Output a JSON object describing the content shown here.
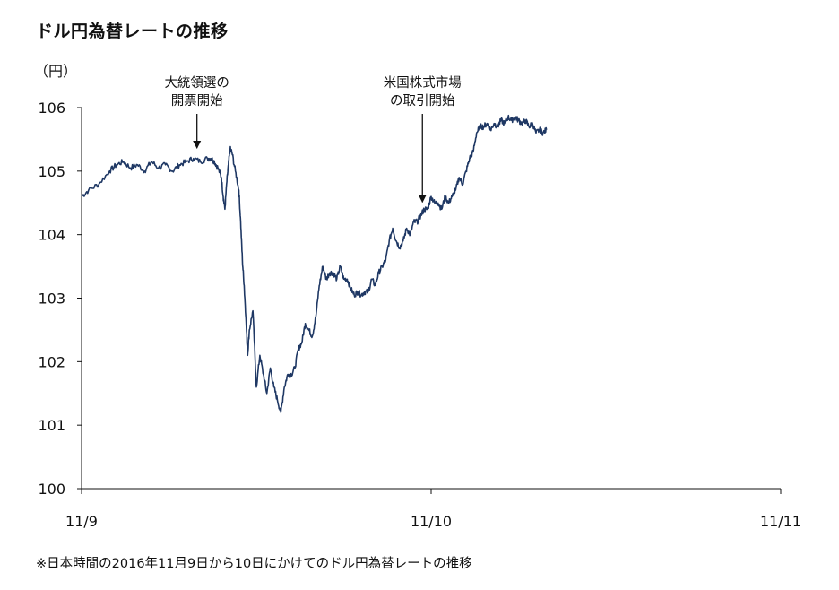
{
  "title": "ドル円為替レートの推移",
  "footnote": "※日本時間の2016年11月9日から10日にかけてのドル円為替レートの推移",
  "colors": {
    "line": "#1f3864",
    "axis": "#111111"
  },
  "chart_data": {
    "type": "line",
    "ylabel": "（円）",
    "ylim": [
      100,
      106
    ],
    "yticks": [
      100,
      101,
      102,
      103,
      104,
      105,
      106
    ],
    "xticks": [
      "11/9",
      "11/10",
      "11/11"
    ],
    "xlim_days": [
      0,
      2
    ],
    "annotations": [
      {
        "lines": [
          "大統領選の",
          "開票開始"
        ],
        "at_x": 0.33,
        "at_y": 105.25
      },
      {
        "lines": [
          "米国株式市場",
          "の取引開始"
        ],
        "at_x": 0.975,
        "at_y": 104.4
      }
    ],
    "series": [
      {
        "x": [
          0,
          0.02,
          0.05,
          0.08,
          0.1,
          0.12,
          0.14,
          0.16,
          0.18,
          0.2,
          0.22,
          0.24,
          0.26,
          0.28,
          0.3,
          0.32,
          0.34,
          0.36,
          0.37,
          0.38,
          0.39,
          0.4,
          0.405,
          0.41,
          0.415,
          0.42,
          0.425,
          0.43,
          0.44,
          0.45,
          0.455,
          0.46,
          0.465,
          0.47,
          0.475,
          0.48,
          0.49,
          0.5,
          0.51,
          0.52,
          0.53,
          0.54,
          0.55,
          0.56,
          0.57,
          0.58,
          0.59,
          0.6,
          0.61,
          0.62,
          0.63,
          0.64,
          0.65,
          0.66,
          0.67,
          0.68,
          0.69,
          0.7,
          0.71,
          0.72,
          0.73,
          0.74,
          0.75,
          0.76,
          0.77,
          0.78,
          0.79,
          0.8,
          0.81,
          0.82,
          0.83,
          0.84,
          0.85,
          0.86,
          0.87,
          0.88,
          0.89,
          0.9,
          0.91,
          0.92,
          0.93,
          0.94,
          0.95,
          0.96,
          0.97,
          0.98,
          0.99,
          1.0,
          1.01,
          1.02,
          1.03,
          1.04,
          1.05,
          1.06,
          1.07,
          1.08,
          1.09,
          1.1,
          1.11,
          1.12,
          1.13,
          1.14,
          1.15,
          1.16,
          1.17,
          1.18,
          1.19,
          1.2,
          1.21,
          1.22,
          1.23,
          1.24,
          1.25,
          1.26,
          1.27,
          1.28,
          1.29,
          1.3,
          1.31,
          1.32,
          1.33
        ],
        "values": [
          104.6,
          104.7,
          104.8,
          105.0,
          105.1,
          105.15,
          105.05,
          105.1,
          105.0,
          105.15,
          105.05,
          105.1,
          105.0,
          105.1,
          105.15,
          105.2,
          105.15,
          105.2,
          105.2,
          105.15,
          105.05,
          104.9,
          104.6,
          104.4,
          104.8,
          105.1,
          105.35,
          105.3,
          105.0,
          104.7,
          104.2,
          103.6,
          103.2,
          102.7,
          102.1,
          102.5,
          102.8,
          101.6,
          102.1,
          101.8,
          101.5,
          101.9,
          101.6,
          101.4,
          101.2,
          101.6,
          101.8,
          101.8,
          101.9,
          102.2,
          102.3,
          102.6,
          102.5,
          102.4,
          102.7,
          103.2,
          103.5,
          103.3,
          103.4,
          103.4,
          103.3,
          103.5,
          103.3,
          103.3,
          103.15,
          103.05,
          103.1,
          103.05,
          103.1,
          103.1,
          103.3,
          103.2,
          103.4,
          103.5,
          103.6,
          103.9,
          104.1,
          103.9,
          103.8,
          103.9,
          104.1,
          104.0,
          104.2,
          104.2,
          104.3,
          104.4,
          104.4,
          104.6,
          104.5,
          104.5,
          104.4,
          104.6,
          104.5,
          104.6,
          104.7,
          104.9,
          104.8,
          105.0,
          105.2,
          105.3,
          105.6,
          105.7,
          105.7,
          105.75,
          105.65,
          105.75,
          105.7,
          105.8,
          105.75,
          105.85,
          105.8,
          105.85,
          105.8,
          105.75,
          105.8,
          105.7,
          105.75,
          105.6,
          105.65,
          105.6,
          105.65
        ]
      }
    ]
  }
}
